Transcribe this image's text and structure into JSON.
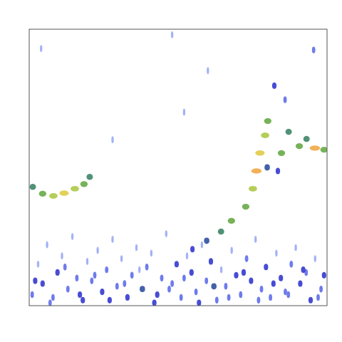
{
  "chart_data": {
    "type": "scatter",
    "xlim": [
      0,
      100
    ],
    "ylim": [
      0,
      100
    ],
    "tick_labels": false,
    "grid": false,
    "x": [
      1.2,
      4.5,
      8.1,
      11.7,
      15.3,
      18.4,
      20.3,
      54.8,
      59.6,
      64.4,
      67.9,
      72.7,
      75.1,
      76.3,
      77.5,
      79.2,
      80.1,
      84.7,
      87.1,
      90.7,
      93.1,
      95.9,
      99,
      82.3,
      85.9,
      95.5,
      79.9,
      83.5,
      1,
      3,
      4.5,
      6,
      8,
      9.5,
      11,
      13,
      14.5,
      16,
      18,
      19.5,
      21,
      23,
      24.5,
      26,
      28,
      29.5,
      31,
      33,
      34.5,
      36,
      38,
      39.5,
      41,
      43,
      44.5,
      46,
      48,
      49.5,
      51,
      53,
      54.5,
      56,
      58,
      59.5,
      61,
      63,
      64.5,
      66,
      68,
      69.5,
      71,
      73,
      74.5,
      76,
      78,
      79.5,
      81,
      83,
      84.5,
      86,
      88,
      89.5,
      91,
      93,
      94.5,
      96,
      98,
      99,
      2,
      7,
      12,
      17,
      22,
      27,
      32,
      37,
      42,
      47,
      52,
      57,
      62,
      67,
      72,
      77,
      82,
      87,
      92,
      97,
      4,
      48,
      52,
      28,
      60
    ],
    "values": [
      43,
      40.5,
      39.7,
      40.7,
      42.3,
      44,
      46.6,
      20.4,
      23.5,
      26.8,
      30.7,
      35.8,
      42.3,
      48.7,
      55.2,
      61.6,
      66.8,
      55.2,
      62.9,
      57.7,
      60.3,
      57,
      56.4,
      79.6,
      74.5,
      92.5,
      50,
      48.7,
      4,
      15,
      8,
      22,
      3,
      12,
      18,
      6,
      25,
      10,
      2,
      16,
      9,
      20,
      5,
      13,
      24,
      7,
      17,
      3,
      11,
      21,
      6,
      14,
      19,
      4,
      10,
      26,
      8,
      15,
      3,
      18,
      12,
      5,
      22,
      9,
      16,
      2,
      13,
      7,
      20,
      11,
      4,
      17,
      9,
      24,
      6,
      14,
      3,
      19,
      10,
      5,
      15,
      21,
      8,
      12,
      2,
      17,
      6,
      11,
      9,
      1,
      14,
      4,
      11,
      2,
      8,
      13,
      1,
      6,
      10,
      1,
      7,
      3,
      12,
      2,
      8,
      4,
      13,
      3,
      93,
      98,
      70,
      60,
      85
    ],
    "intensity": [
      5,
      6,
      7,
      8,
      7,
      6,
      5,
      3,
      4,
      5,
      6,
      6,
      7,
      9,
      8,
      7,
      6,
      6,
      5,
      6,
      5,
      9,
      6,
      3,
      2,
      2,
      4,
      3,
      2,
      1,
      3,
      1,
      2,
      3,
      1,
      2,
      1,
      2,
      3,
      1,
      2,
      1,
      3,
      2,
      1,
      2,
      1,
      3,
      2,
      1,
      4,
      2,
      1,
      3,
      2,
      1,
      2,
      3,
      2,
      1,
      3,
      2,
      1,
      2,
      3,
      2,
      1,
      2,
      1,
      3,
      2,
      2,
      3,
      1,
      2,
      3,
      2,
      1,
      3,
      2,
      2,
      1,
      3,
      2,
      3,
      1,
      2,
      3,
      3,
      2,
      2,
      3,
      2,
      3,
      2,
      1,
      3,
      2,
      2,
      3,
      4,
      2,
      3,
      2,
      3,
      2,
      3,
      2,
      1,
      1,
      1,
      1,
      1
    ],
    "intensity_range": [
      0,
      10
    ]
  }
}
